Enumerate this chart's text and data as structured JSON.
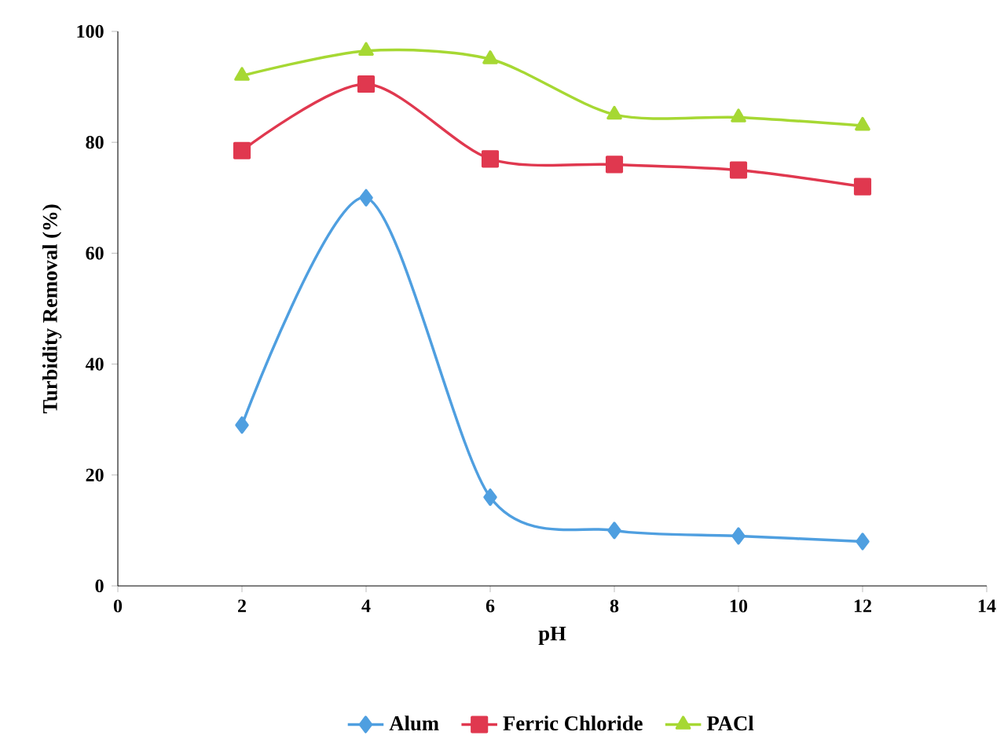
{
  "chart_data": {
    "type": "line",
    "xlabel": "pH",
    "ylabel": "Turbidity Removal (%)",
    "xlim": [
      0,
      14
    ],
    "ylim": [
      0,
      100
    ],
    "xticks": [
      0,
      2,
      4,
      6,
      8,
      10,
      12,
      14
    ],
    "yticks": [
      0,
      20,
      40,
      60,
      80,
      100
    ],
    "legend": "bottom",
    "grid": false,
    "x": [
      2,
      4,
      6,
      8,
      10,
      12
    ],
    "series": [
      {
        "name": "Alum",
        "color": "#4f9fe0",
        "marker": "diamond",
        "values": [
          29,
          70,
          16,
          10,
          9,
          8
        ]
      },
      {
        "name": "Ferric Chloride",
        "color": "#e0384f",
        "marker": "square",
        "values": [
          78.5,
          90.5,
          77,
          76,
          75,
          72
        ]
      },
      {
        "name": "PACl",
        "color": "#a6d833",
        "marker": "triangle",
        "values": [
          92,
          96.5,
          95,
          85,
          84.5,
          83
        ]
      }
    ]
  }
}
